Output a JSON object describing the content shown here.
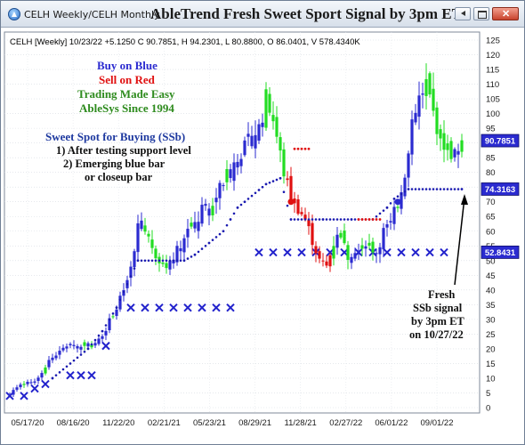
{
  "window": {
    "title": "CELH Weekly/CELH Monthly",
    "chart_title": "AbleTrend Fresh Sweet Sport Signal by 3pm ET"
  },
  "info_line": "CELH [Weekly] 10/23/22 +5.1250 C 90.7851, H 94.2301, L 80.8800, O 86.0401, V 578.4340K",
  "legend": {
    "line1": "Buy on Blue",
    "line2": "Sell on Red",
    "line3": "Trading Made Easy",
    "line4": "AbleSys Since 1994",
    "colors": {
      "blue": "#2b2bd0",
      "red": "#e01010",
      "green": "#2e8b1e"
    }
  },
  "ssb": {
    "title": "Sweet Spot for Buying (SSb)",
    "line1": "1) After testing support level",
    "line2": "2) Emerging blue bar",
    "line3": "or closeup bar"
  },
  "callout": {
    "line1": "Fresh",
    "line2": "SSb signal",
    "line3": "by 3pm ET",
    "line4": "on 10/27/22"
  },
  "chart_data": {
    "type": "bar",
    "subtype": "ohlc-weekly",
    "y_ticks": [
      0,
      5,
      10,
      15,
      20,
      25,
      30,
      35,
      40,
      45,
      50,
      55,
      60,
      65,
      70,
      75,
      80,
      85,
      90,
      95,
      100,
      105,
      110,
      115,
      120,
      125
    ],
    "ylim": [
      0,
      125
    ],
    "x_ticks": [
      "05/17/20",
      "08/16/20",
      "11/22/20",
      "02/21/21",
      "05/23/21",
      "08/29/21",
      "11/28/21",
      "02/27/22",
      "06/01/22",
      "09/01/22"
    ],
    "price_labels": [
      {
        "value": 90.7851,
        "text": "90.7851",
        "color": "#2b2bd0"
      },
      {
        "value": 74.3163,
        "text": "74.3163",
        "color": "#2b2bd0"
      },
      {
        "value": 52.8431,
        "text": "52.8431",
        "color": "#2b2bd0"
      }
    ],
    "colors": {
      "buy": "#2b2bd0",
      "sell": "#e01010",
      "neutral": "#22dd22"
    },
    "bar_anchors": [
      [
        0,
        4.5,
        "b"
      ],
      [
        1,
        6
      ],
      [
        3,
        8
      ],
      [
        5,
        8.5
      ],
      [
        7,
        9
      ],
      [
        9,
        12
      ],
      [
        11,
        16
      ],
      [
        13,
        18
      ],
      [
        15,
        20
      ],
      [
        17,
        22
      ],
      [
        19,
        20
      ],
      [
        21,
        22
      ],
      [
        23,
        21
      ],
      [
        25,
        23
      ],
      [
        27,
        27
      ],
      [
        29,
        32
      ],
      [
        31,
        37
      ],
      [
        33,
        42
      ],
      [
        35,
        52
      ],
      [
        36,
        62
      ],
      [
        38,
        60
      ],
      [
        40,
        55
      ],
      [
        42,
        50
      ],
      [
        44,
        48
      ],
      [
        46,
        52
      ],
      [
        48,
        55
      ],
      [
        50,
        62
      ],
      [
        52,
        60
      ],
      [
        54,
        68
      ],
      [
        56,
        65
      ],
      [
        58,
        72
      ],
      [
        60,
        77
      ],
      [
        62,
        80
      ],
      [
        64,
        86
      ],
      [
        66,
        88
      ],
      [
        68,
        92
      ],
      [
        70,
        95
      ],
      [
        72,
        105
      ],
      [
        74,
        98
      ],
      [
        75,
        92
      ],
      [
        77,
        80
      ],
      [
        79,
        72,
        "r"
      ],
      [
        81,
        68,
        "r"
      ],
      [
        83,
        64,
        "r"
      ],
      [
        85,
        57,
        "r"
      ],
      [
        87,
        50,
        "r"
      ],
      [
        89,
        48,
        "r"
      ],
      [
        91,
        56
      ],
      [
        93,
        58
      ],
      [
        95,
        52
      ],
      [
        97,
        54
      ],
      [
        99,
        56
      ],
      [
        101,
        55
      ],
      [
        103,
        53
      ],
      [
        105,
        60
      ],
      [
        107,
        62
      ],
      [
        109,
        70
      ],
      [
        111,
        80
      ],
      [
        113,
        95
      ],
      [
        115,
        105
      ],
      [
        117,
        110
      ],
      [
        119,
        100
      ],
      [
        121,
        92
      ],
      [
        123,
        88
      ],
      [
        125,
        86
      ],
      [
        127,
        90.8
      ]
    ],
    "blue_dots": [
      [
        12,
        10
      ],
      [
        22,
        20
      ],
      [
        26,
        26
      ],
      [
        30,
        34
      ],
      [
        33,
        42
      ],
      [
        36,
        50
      ],
      [
        49,
        50
      ],
      [
        52,
        52
      ],
      [
        56,
        56
      ],
      [
        60,
        60
      ],
      [
        62,
        64
      ],
      [
        64,
        68
      ],
      [
        66,
        70
      ],
      [
        70,
        74
      ],
      [
        72,
        76
      ],
      [
        76,
        78
      ],
      [
        79,
        64
      ],
      [
        88,
        64
      ],
      [
        96,
        64
      ],
      [
        102,
        64
      ],
      [
        106,
        68
      ],
      [
        108,
        71
      ],
      [
        112,
        74.3
      ],
      [
        127,
        74.3
      ]
    ],
    "red_dots": [
      [
        80,
        88
      ],
      [
        84,
        88
      ],
      [
        98,
        64
      ],
      [
        104,
        64
      ]
    ],
    "x_marks": [
      [
        0,
        4
      ],
      [
        4,
        4
      ],
      [
        7,
        6.5
      ],
      [
        10,
        8
      ],
      [
        17,
        11
      ],
      [
        20,
        11
      ],
      [
        23,
        11
      ],
      [
        27,
        21
      ],
      [
        34,
        34
      ],
      [
        38,
        34
      ],
      [
        42,
        34
      ],
      [
        46,
        34
      ],
      [
        50,
        34
      ],
      [
        54,
        34
      ],
      [
        58,
        34
      ],
      [
        62,
        34
      ],
      [
        70,
        52.8
      ],
      [
        74,
        52.8
      ],
      [
        78,
        52.8
      ],
      [
        82,
        52.8
      ],
      [
        86,
        52.8
      ],
      [
        90,
        52.8
      ],
      [
        94,
        52.8
      ],
      [
        98,
        52.8
      ],
      [
        102,
        52.8
      ],
      [
        106,
        52.8
      ],
      [
        110,
        52.8
      ],
      [
        114,
        52.8
      ],
      [
        118,
        52.8
      ],
      [
        122,
        52.8
      ]
    ]
  }
}
